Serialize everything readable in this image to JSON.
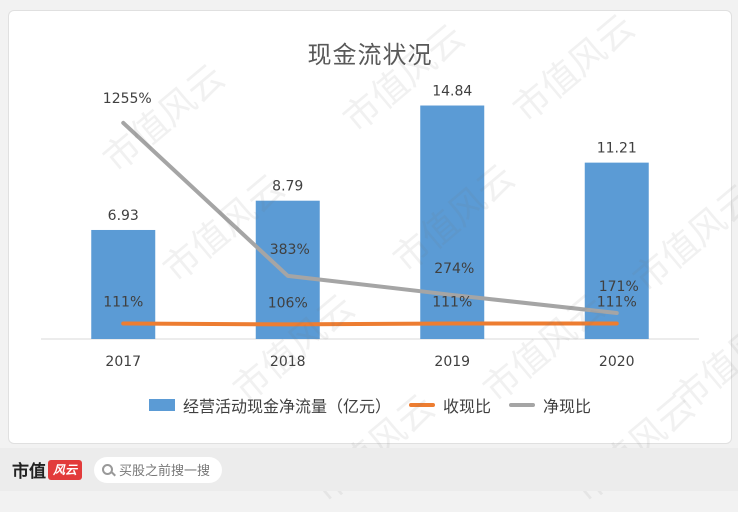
{
  "chart_data": {
    "type": "bar",
    "title": "现金流状况",
    "categories": [
      "2017",
      "2018",
      "2019",
      "2020"
    ],
    "series": [
      {
        "name": "经营活动现金净流量（亿元）",
        "type": "bar",
        "color": "#5b9bd5",
        "values": [
          6.93,
          8.79,
          14.84,
          11.21
        ],
        "labels": [
          "6.93",
          "8.79",
          "14.84",
          "11.21"
        ]
      },
      {
        "name": "收现比",
        "type": "line",
        "color": "#ed7d31",
        "axis": "secondary",
        "values": [
          111,
          106,
          111,
          111
        ],
        "labels": [
          "111%",
          "106%",
          "111%",
          "111%"
        ]
      },
      {
        "name": "净现比",
        "type": "line",
        "color": "#a5a5a5",
        "axis": "secondary",
        "values": [
          1255,
          383,
          274,
          171
        ],
        "labels": [
          "1255%",
          "383%",
          "274%",
          "171%"
        ]
      }
    ],
    "legend_position": "bottom",
    "grid": false
  },
  "footer": {
    "brand": "市值",
    "brand_mark": "风云",
    "search_placeholder": "买股之前搜一搜"
  },
  "watermark": "市值风云"
}
